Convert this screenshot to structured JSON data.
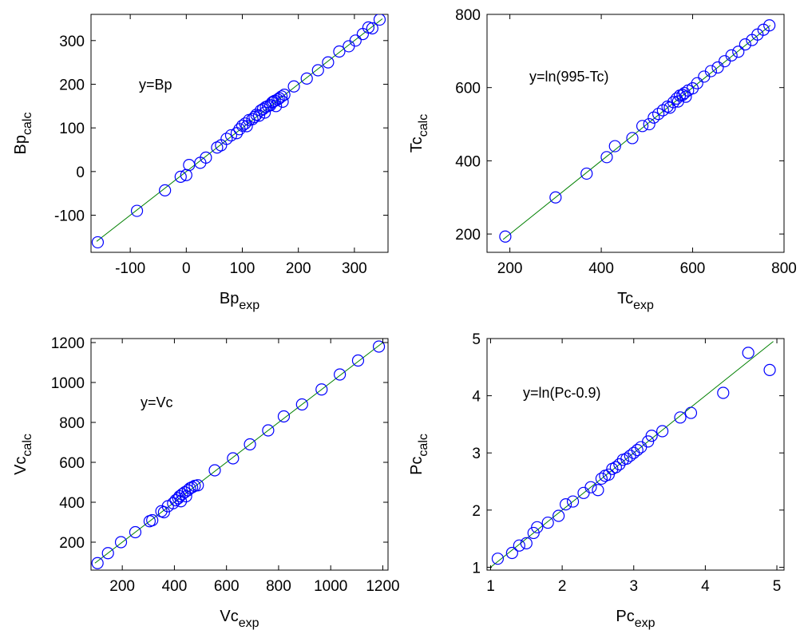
{
  "colors": {
    "marker": "#0000ff",
    "fit_line": "#008000",
    "axes": "#000000",
    "background": "#ffffff"
  },
  "chart_data": [
    {
      "id": "bp",
      "type": "scatter",
      "annotation": "y=Bp",
      "xlabel": {
        "base": "Bp",
        "sub": "exp"
      },
      "ylabel": {
        "base": "Bp",
        "sub": "calc"
      },
      "xlim": [
        -170,
        360
      ],
      "ylim": [
        -185,
        360
      ],
      "xticks": [
        -100,
        0,
        100,
        200,
        300
      ],
      "yticks": [
        -100,
        0,
        100,
        200,
        300
      ],
      "fit_line": [
        [
          -160,
          -160
        ],
        [
          350,
          350
        ]
      ],
      "points": [
        [
          -158,
          -162
        ],
        [
          -88,
          -90
        ],
        [
          -38,
          -43
        ],
        [
          -10,
          -12
        ],
        [
          0,
          -8
        ],
        [
          5,
          15
        ],
        [
          25,
          20
        ],
        [
          35,
          32
        ],
        [
          55,
          55
        ],
        [
          62,
          60
        ],
        [
          72,
          75
        ],
        [
          80,
          83
        ],
        [
          90,
          88
        ],
        [
          95,
          97
        ],
        [
          100,
          105
        ],
        [
          105,
          110
        ],
        [
          108,
          104
        ],
        [
          112,
          118
        ],
        [
          118,
          120
        ],
        [
          122,
          125
        ],
        [
          125,
          130
        ],
        [
          130,
          128
        ],
        [
          133,
          140
        ],
        [
          137,
          143
        ],
        [
          140,
          135
        ],
        [
          142,
          148
        ],
        [
          146,
          150
        ],
        [
          150,
          152
        ],
        [
          153,
          158
        ],
        [
          155,
          160
        ],
        [
          158,
          162
        ],
        [
          160,
          150
        ],
        [
          163,
          165
        ],
        [
          166,
          168
        ],
        [
          170,
          172
        ],
        [
          172,
          160
        ],
        [
          175,
          176
        ],
        [
          192,
          195
        ],
        [
          215,
          213
        ],
        [
          235,
          232
        ],
        [
          253,
          250
        ],
        [
          273,
          275
        ],
        [
          290,
          287
        ],
        [
          302,
          300
        ],
        [
          315,
          315
        ],
        [
          325,
          330
        ],
        [
          332,
          328
        ],
        [
          345,
          348
        ]
      ]
    },
    {
      "id": "tc",
      "type": "scatter",
      "annotation": "y=ln(995-Tc)",
      "xlabel": {
        "base": "Tc",
        "sub": "exp"
      },
      "ylabel": {
        "base": "Tc",
        "sub": "calc"
      },
      "xlim": [
        150,
        800
      ],
      "ylim": [
        150,
        800
      ],
      "xticks": [
        200,
        400,
        600,
        800
      ],
      "yticks": [
        200,
        400,
        600,
        800
      ],
      "fit_line": [
        [
          185,
          185
        ],
        [
          770,
          770
        ]
      ],
      "points": [
        [
          190,
          193
        ],
        [
          300,
          300
        ],
        [
          368,
          365
        ],
        [
          412,
          410
        ],
        [
          430,
          440
        ],
        [
          468,
          462
        ],
        [
          490,
          495
        ],
        [
          505,
          500
        ],
        [
          515,
          518
        ],
        [
          525,
          528
        ],
        [
          535,
          538
        ],
        [
          545,
          548
        ],
        [
          550,
          545
        ],
        [
          558,
          560
        ],
        [
          565,
          570
        ],
        [
          568,
          562
        ],
        [
          572,
          578
        ],
        [
          578,
          580
        ],
        [
          582,
          585
        ],
        [
          585,
          575
        ],
        [
          590,
          592
        ],
        [
          600,
          598
        ],
        [
          610,
          612
        ],
        [
          625,
          630
        ],
        [
          640,
          645
        ],
        [
          655,
          655
        ],
        [
          670,
          672
        ],
        [
          685,
          688
        ],
        [
          700,
          698
        ],
        [
          715,
          718
        ],
        [
          730,
          730
        ],
        [
          742,
          745
        ],
        [
          755,
          758
        ],
        [
          768,
          770
        ]
      ]
    },
    {
      "id": "vc",
      "type": "scatter",
      "annotation": "y=Vc",
      "xlabel": {
        "base": "Vc",
        "sub": "exp"
      },
      "ylabel": {
        "base": "Vc",
        "sub": "calc"
      },
      "xlim": [
        80,
        1220
      ],
      "ylim": [
        60,
        1220
      ],
      "xticks": [
        200,
        400,
        600,
        800,
        1000,
        1200
      ],
      "yticks": [
        200,
        400,
        600,
        800,
        1000,
        1200
      ],
      "fit_line": [
        [
          95,
          95
        ],
        [
          1200,
          1200
        ]
      ],
      "points": [
        [
          105,
          95
        ],
        [
          145,
          145
        ],
        [
          195,
          200
        ],
        [
          250,
          250
        ],
        [
          305,
          305
        ],
        [
          315,
          310
        ],
        [
          350,
          355
        ],
        [
          360,
          350
        ],
        [
          375,
          380
        ],
        [
          395,
          395
        ],
        [
          405,
          410
        ],
        [
          415,
          420
        ],
        [
          420,
          430
        ],
        [
          425,
          405
        ],
        [
          430,
          440
        ],
        [
          440,
          450
        ],
        [
          445,
          430
        ],
        [
          452,
          460
        ],
        [
          460,
          470
        ],
        [
          468,
          475
        ],
        [
          478,
          482
        ],
        [
          490,
          485
        ],
        [
          555,
          560
        ],
        [
          625,
          620
        ],
        [
          690,
          690
        ],
        [
          760,
          760
        ],
        [
          820,
          830
        ],
        [
          890,
          890
        ],
        [
          965,
          965
        ],
        [
          1035,
          1040
        ],
        [
          1105,
          1110
        ],
        [
          1185,
          1180
        ]
      ]
    },
    {
      "id": "pc",
      "type": "scatter",
      "annotation": "y=ln(Pc-0.9)",
      "xlabel": {
        "base": "Pc",
        "sub": "exp"
      },
      "ylabel": {
        "base": "Pc",
        "sub": "calc"
      },
      "xlim": [
        0.95,
        5.1
      ],
      "ylim": [
        0.95,
        5.0
      ],
      "xticks": [
        1,
        2,
        3,
        4,
        5
      ],
      "yticks": [
        1,
        2,
        3,
        4,
        5
      ],
      "fit_line": [
        [
          1.0,
          1.0
        ],
        [
          4.95,
          4.95
        ]
      ],
      "points": [
        [
          1.1,
          1.15
        ],
        [
          1.3,
          1.25
        ],
        [
          1.4,
          1.38
        ],
        [
          1.5,
          1.42
        ],
        [
          1.6,
          1.6
        ],
        [
          1.65,
          1.7
        ],
        [
          1.8,
          1.78
        ],
        [
          1.95,
          1.9
        ],
        [
          2.05,
          2.1
        ],
        [
          2.15,
          2.15
        ],
        [
          2.3,
          2.3
        ],
        [
          2.4,
          2.4
        ],
        [
          2.5,
          2.35
        ],
        [
          2.55,
          2.55
        ],
        [
          2.6,
          2.6
        ],
        [
          2.65,
          2.62
        ],
        [
          2.7,
          2.72
        ],
        [
          2.75,
          2.75
        ],
        [
          2.8,
          2.8
        ],
        [
          2.85,
          2.88
        ],
        [
          2.9,
          2.9
        ],
        [
          2.95,
          2.95
        ],
        [
          3.0,
          3.0
        ],
        [
          3.05,
          3.05
        ],
        [
          3.1,
          3.1
        ],
        [
          3.2,
          3.2
        ],
        [
          3.25,
          3.3
        ],
        [
          3.4,
          3.38
        ],
        [
          3.65,
          3.62
        ],
        [
          3.8,
          3.7
        ],
        [
          4.25,
          4.05
        ],
        [
          4.6,
          4.75
        ],
        [
          4.9,
          4.45
        ]
      ]
    }
  ]
}
